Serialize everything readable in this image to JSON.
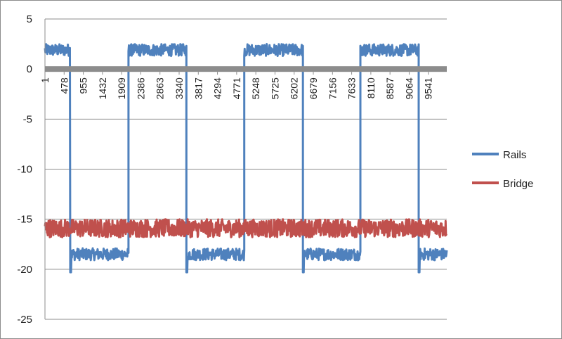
{
  "chart_data": {
    "type": "line",
    "title": "",
    "xlabel": "",
    "ylabel": "",
    "xlim": [
      1,
      10000
    ],
    "ylim": [
      -25,
      5
    ],
    "y_ticks": [
      5,
      0,
      -5,
      -10,
      -15,
      -20,
      -25
    ],
    "y_tick_labels": [
      "5",
      "0",
      "-5",
      "-10",
      "-15",
      "-20",
      "-25"
    ],
    "x_ticks": [
      1,
      478,
      955,
      1432,
      1909,
      2386,
      2863,
      3340,
      3817,
      4294,
      4771,
      5248,
      5725,
      6202,
      6679,
      7156,
      7633,
      8110,
      8587,
      9064,
      9541
    ],
    "x_tick_labels": [
      "1",
      "478",
      "955",
      "1432",
      "1909",
      "2386",
      "2863",
      "3340",
      "3817",
      "4294",
      "4771",
      "5248",
      "5725",
      "6202",
      "6679",
      "7156",
      "7633",
      "8110",
      "8587",
      "9064",
      "9541"
    ],
    "x_axis_crosses_y_at": 0,
    "gridlines": "horizontal",
    "legend_position": "right",
    "series": [
      {
        "name": "Rails",
        "color": "#4f81bd",
        "shape": "square-wave",
        "high_level": 1.9,
        "low_level": -18.5,
        "noise_amplitude": 0.6,
        "segments": [
          {
            "x_start": 1,
            "x_end": 630,
            "level": 1.9
          },
          {
            "x_start": 630,
            "x_end": 2080,
            "level": -18.5
          },
          {
            "x_start": 2080,
            "x_end": 3520,
            "level": 1.9
          },
          {
            "x_start": 3520,
            "x_end": 4960,
            "level": -18.5
          },
          {
            "x_start": 4960,
            "x_end": 6420,
            "level": 1.9
          },
          {
            "x_start": 6420,
            "x_end": 7850,
            "level": -18.5
          },
          {
            "x_start": 7850,
            "x_end": 9300,
            "level": 1.9
          },
          {
            "x_start": 9300,
            "x_end": 10000,
            "level": -18.5
          }
        ]
      },
      {
        "name": "Bridge",
        "color": "#c0504d",
        "shape": "noisy-constant",
        "level": -15.9,
        "noise_amplitude": 0.9
      }
    ]
  },
  "legend": {
    "items": [
      {
        "label": "Rails",
        "color": "#4f81bd"
      },
      {
        "label": "Bridge",
        "color": "#c0504d"
      }
    ]
  },
  "colors": {
    "axis": "#8c8c8c",
    "gridline": "#8c8c8c",
    "border": "#8c8c8c"
  }
}
